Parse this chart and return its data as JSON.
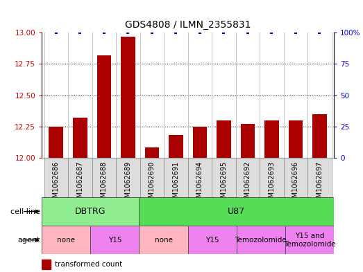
{
  "title": "GDS4808 / ILMN_2355831",
  "samples": [
    "GSM1062686",
    "GSM1062687",
    "GSM1062688",
    "GSM1062689",
    "GSM1062690",
    "GSM1062691",
    "GSM1062694",
    "GSM1062695",
    "GSM1062692",
    "GSM1062693",
    "GSM1062696",
    "GSM1062697"
  ],
  "red_values": [
    12.25,
    12.32,
    12.82,
    12.97,
    12.08,
    12.18,
    12.25,
    12.3,
    12.27,
    12.3,
    12.3,
    12.35
  ],
  "blue_values": [
    100,
    100,
    100,
    100,
    100,
    100,
    100,
    100,
    100,
    100,
    100,
    100
  ],
  "ylim_left": [
    12.0,
    13.0
  ],
  "ylim_right": [
    0,
    100
  ],
  "yticks_left": [
    12.0,
    12.25,
    12.5,
    12.75,
    13.0
  ],
  "yticks_right": [
    0,
    25,
    50,
    75,
    100
  ],
  "cell_line_groups": [
    {
      "label": "DBTRG",
      "start": 0,
      "end": 4,
      "color": "#90EE90"
    },
    {
      "label": "U87",
      "start": 4,
      "end": 12,
      "color": "#55DD55"
    }
  ],
  "agent_groups": [
    {
      "label": "none",
      "start": 0,
      "end": 2,
      "color": "#FFB6C1"
    },
    {
      "label": "Y15",
      "start": 2,
      "end": 4,
      "color": "#EE82EE"
    },
    {
      "label": "none",
      "start": 4,
      "end": 6,
      "color": "#FFB6C1"
    },
    {
      "label": "Y15",
      "start": 6,
      "end": 8,
      "color": "#EE82EE"
    },
    {
      "label": "Temozolomide",
      "start": 8,
      "end": 10,
      "color": "#EE82EE"
    },
    {
      "label": "Y15 and\nTemozolomide",
      "start": 10,
      "end": 12,
      "color": "#EE82EE"
    }
  ],
  "bar_color": "#AA0000",
  "dot_color": "#0000CC",
  "left_tick_color": "#CC0000",
  "right_tick_color": "#0000CC",
  "bg_color": "#FFFFFF",
  "plot_bg": "#FFFFFF",
  "separator_color": "#BBBBBB",
  "sample_bg_color": "#DDDDDD",
  "label_fontsize": 7,
  "tick_label_fontsize": 7.5,
  "title_fontsize": 10
}
